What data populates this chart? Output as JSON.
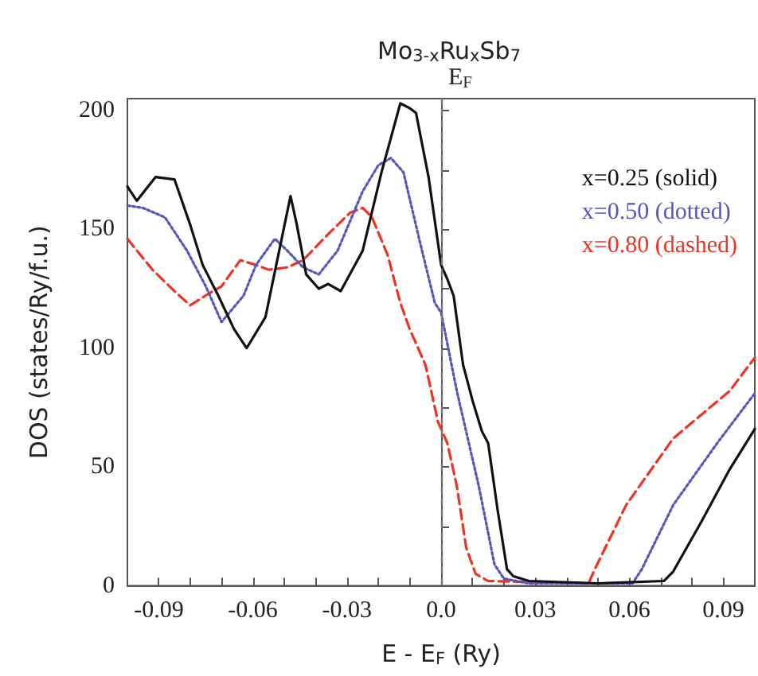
{
  "chart_data": {
    "type": "line",
    "title": "Mo$_{3-x}$Ru$_{x}$Sb$_{7}$",
    "xlabel": "E - E$_{F}$ (Ry)",
    "ylabel": "DOS (states/Ry/f.u.)",
    "xlim": [
      -0.1,
      0.1
    ],
    "ylim": [
      0,
      205
    ],
    "xticks": [
      -0.09,
      {
        "value": -0.08,
        "label": null
      },
      {
        "value": -0.07,
        "label": null
      },
      -0.06,
      {
        "value": -0.05,
        "label": null
      },
      {
        "value": -0.04,
        "label": null
      },
      -0.03,
      {
        "value": -0.02,
        "label": null
      },
      {
        "value": -0.01,
        "label": null
      },
      {
        "value": 0,
        "label": "0.0"
      },
      {
        "value": 0.01,
        "label": null
      },
      {
        "value": 0.02,
        "label": null
      },
      0.03,
      {
        "value": 0.04,
        "label": null
      },
      {
        "value": 0.05,
        "label": null
      },
      0.06,
      {
        "value": 0.07,
        "label": null
      },
      {
        "value": 0.08,
        "label": null
      },
      0.09
    ],
    "yticks": [
      0,
      {
        "value": 25,
        "label": null
      },
      50,
      {
        "value": 75,
        "label": null
      },
      100,
      {
        "value": 125,
        "label": null
      },
      150,
      {
        "value": 175,
        "label": null
      },
      200
    ],
    "grid": false,
    "legend": "top right",
    "marker": "none",
    "ref_lines": [
      {
        "axis": "x",
        "value": 0,
        "label": "E$_{F}$",
        "color": "#777777",
        "line_style": "dashed"
      }
    ],
    "series": [
      {
        "name": "x=0.25 (solid)",
        "color": "#111111",
        "line_style": "solid",
        "x": [
          -0.1,
          -0.097,
          -0.091,
          -0.085,
          -0.08,
          -0.076,
          -0.071,
          -0.066,
          -0.062,
          -0.056,
          -0.048,
          -0.046,
          -0.043,
          -0.039,
          -0.036,
          -0.032,
          -0.025,
          -0.019,
          -0.013,
          -0.01,
          -0.008,
          -0.004,
          0,
          0.002,
          0.004,
          0.007,
          0.01,
          0.013,
          0.015,
          0.018,
          0.021,
          0.023,
          0.028,
          0.05,
          0.071,
          0.074,
          0.083,
          0.092,
          0.1
        ],
        "values": [
          168,
          162,
          172,
          171,
          152,
          135,
          122,
          108,
          100,
          113,
          164,
          152,
          131,
          125,
          127,
          124,
          141,
          174,
          203,
          201,
          199,
          172,
          135,
          129,
          122,
          93,
          78,
          65,
          60,
          32,
          7,
          4,
          2,
          1,
          2,
          6,
          27,
          49,
          66
        ]
      },
      {
        "name": "x=0.50 (dotted)",
        "color": "#5555bb",
        "line_style": "dotted",
        "x": [
          -0.1,
          -0.095,
          -0.088,
          -0.081,
          -0.075,
          -0.07,
          -0.063,
          -0.059,
          -0.053,
          -0.049,
          -0.044,
          -0.039,
          -0.033,
          -0.025,
          -0.02,
          -0.016,
          -0.012,
          -0.007,
          -0.002,
          0,
          0.005,
          0.012,
          0.017,
          0.02,
          0.028,
          0.061,
          0.064,
          0.074,
          0.088,
          0.1
        ],
        "values": [
          160,
          159,
          155,
          141,
          126,
          111,
          122,
          135,
          146,
          141,
          134,
          131,
          141,
          166,
          177,
          180,
          174,
          146,
          119,
          115,
          82,
          42,
          9,
          3,
          1,
          1,
          7,
          34,
          60,
          81
        ]
      },
      {
        "name": "x=0.80 (dashed)",
        "color": "#ee3322",
        "line_style": "dashed",
        "x": [
          -0.1,
          -0.092,
          -0.085,
          -0.08,
          -0.074,
          -0.07,
          -0.064,
          -0.059,
          -0.055,
          -0.049,
          -0.044,
          -0.036,
          -0.029,
          -0.025,
          -0.022,
          -0.017,
          -0.013,
          -0.01,
          -0.005,
          -0.001,
          0.002,
          0.005,
          0.008,
          0.011,
          0.015,
          0.047,
          0.049,
          0.059,
          0.074,
          0.092,
          0.1
        ],
        "values": [
          146,
          133,
          124,
          118,
          123,
          126,
          137,
          135,
          133,
          134,
          137,
          148,
          157,
          159,
          155,
          139,
          119,
          108,
          93,
          69,
          60,
          42,
          16,
          5,
          2,
          1,
          7,
          34,
          62,
          82,
          96
        ]
      }
    ]
  }
}
